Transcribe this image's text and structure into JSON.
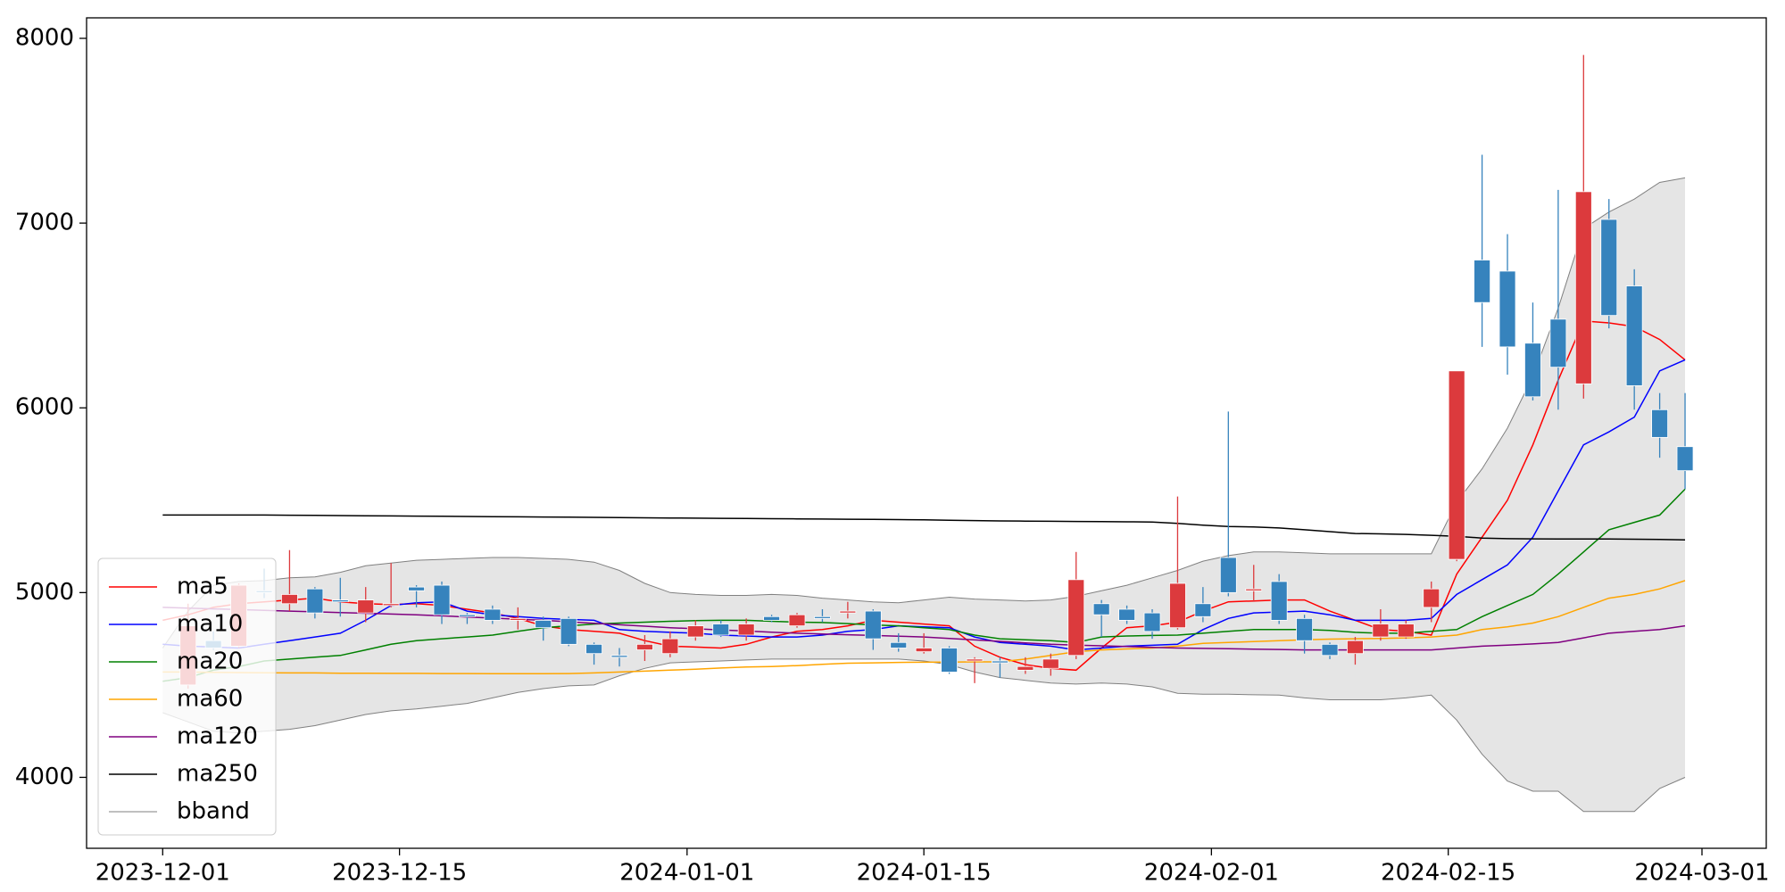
{
  "chart_data": {
    "type": "candlestick",
    "x": [
      0,
      1.5,
      3,
      4.5,
      6,
      7.5,
      9,
      10.5,
      12,
      13.5,
      15,
      16.5,
      18,
      19.5,
      21,
      22.5,
      24,
      25.5,
      27,
      28.5,
      30,
      31.5,
      33,
      34.5,
      36,
      37.5,
      39,
      40.5,
      42,
      43.5,
      45,
      46.5,
      48,
      49.5,
      51,
      52.5,
      54,
      55.5,
      57,
      58.5,
      60,
      61.5,
      63,
      64.5,
      66,
      67.5,
      69,
      70.5,
      72,
      73.5,
      75,
      76.5,
      78,
      79.5,
      81,
      82.5,
      84,
      85.5,
      87,
      88.5,
      90
    ],
    "xlim": [
      -4.5,
      94.8
    ],
    "xticks": [
      {
        "value": 0,
        "label": "2023-12-01"
      },
      {
        "value": 14,
        "label": "2023-12-15"
      },
      {
        "value": 31,
        "label": "2024-01-01"
      },
      {
        "value": 45,
        "label": "2024-01-15"
      },
      {
        "value": 62,
        "label": "2024-02-01"
      },
      {
        "value": 76,
        "label": "2024-02-15"
      },
      {
        "value": 91,
        "label": "2024-03-01"
      }
    ],
    "ylim": [
      3616,
      8111
    ],
    "yticks": [
      4000,
      5000,
      6000,
      7000,
      8000
    ],
    "legend": "lower left",
    "candles": {
      "up_color": "#dc3a3d",
      "down_color": "#3683bd",
      "x": [
        1.5,
        3,
        4.5,
        6,
        7.5,
        9,
        10.5,
        12,
        13.5,
        15,
        16.5,
        18,
        19.5,
        21,
        22.5,
        24,
        25.5,
        27,
        28.5,
        30,
        31.5,
        33,
        34.5,
        36,
        37.5,
        39,
        40.5,
        42,
        43.5,
        45,
        46.5,
        48,
        49.5,
        51,
        52.5,
        54,
        55.5,
        57,
        58.5,
        60,
        61.5,
        63,
        64.5,
        66,
        67.5,
        69,
        70.5,
        72,
        73.5,
        75,
        76.5,
        78,
        79.5,
        81,
        82.5,
        84,
        85.5,
        87,
        88.5,
        90
      ],
      "open": [
        4500,
        4740,
        4710,
        5010,
        4940,
        5020,
        4960,
        4890,
        4930,
        5030,
        5040,
        4880,
        4910,
        4850,
        4850,
        4860,
        4720,
        4660,
        4690,
        4670,
        4760,
        4830,
        4770,
        4870,
        4820,
        4870,
        4890,
        4900,
        4730,
        4680,
        4700,
        4630,
        4630,
        4580,
        4590,
        4660,
        4940,
        4910,
        4890,
        4810,
        4940,
        5190,
        5010,
        5060,
        4860,
        4720,
        4670,
        4760,
        4760,
        4920,
        5180,
        6800,
        6740,
        6350,
        6480,
        6130,
        7020,
        6660,
        5990,
        5790
      ],
      "high": [
        4940,
        4790,
        5050,
        5130,
        5230,
        5030,
        5080,
        5030,
        5160,
        5040,
        5060,
        4890,
        4930,
        4920,
        4870,
        4870,
        4730,
        4700,
        4770,
        4790,
        4850,
        4850,
        4860,
        4880,
        4890,
        4910,
        4950,
        4910,
        4780,
        4780,
        4710,
        4650,
        4650,
        4650,
        4670,
        5220,
        4960,
        4930,
        4910,
        5520,
        5030,
        5980,
        5150,
        5100,
        4880,
        4730,
        4760,
        4910,
        4850,
        5060,
        6200,
        7370,
        6940,
        6570,
        7180,
        7910,
        7130,
        6750,
        6080,
        6080
      ],
      "low": [
        4480,
        4690,
        4700,
        4970,
        4900,
        4860,
        4870,
        4840,
        4920,
        4920,
        4830,
        4830,
        4830,
        4800,
        4740,
        4710,
        4610,
        4600,
        4630,
        4650,
        4740,
        4760,
        4740,
        4840,
        4810,
        4840,
        4860,
        4690,
        4680,
        4670,
        4560,
        4510,
        4540,
        4560,
        4550,
        4640,
        4760,
        4830,
        4750,
        4800,
        4840,
        4980,
        4950,
        4830,
        4670,
        4640,
        4610,
        4740,
        4750,
        4840,
        5170,
        6330,
        6180,
        6040,
        5990,
        6050,
        6430,
        5990,
        5730,
        5560
      ],
      "close": [
        4820,
        4700,
        5040,
        5000,
        4990,
        4890,
        4950,
        4960,
        4940,
        5010,
        4880,
        4870,
        4850,
        4860,
        4810,
        4720,
        4670,
        4650,
        4720,
        4750,
        4820,
        4770,
        4830,
        4850,
        4880,
        4860,
        4900,
        4750,
        4700,
        4700,
        4570,
        4640,
        4620,
        4600,
        4640,
        5070,
        4880,
        4850,
        4790,
        5050,
        4870,
        5000,
        5020,
        4850,
        4740,
        4660,
        4740,
        4830,
        4830,
        5020,
        6200,
        6570,
        6330,
        6060,
        6220,
        7170,
        6500,
        6120,
        5840,
        5660
      ]
    },
    "series": [
      {
        "name": "ma5",
        "color": "#ff0000",
        "values": [
          4850,
          4880,
          4920,
          4940,
          4950,
          4960,
          4970,
          4950,
          4940,
          4935,
          4940,
          4930,
          4910,
          4890,
          4860,
          4820,
          4800,
          4790,
          4780,
          4740,
          4710,
          4705,
          4700,
          4720,
          4760,
          4790,
          4800,
          4820,
          4850,
          4840,
          4830,
          4820,
          4710,
          4650,
          4610,
          4590,
          4580,
          4700,
          4810,
          4820,
          4840,
          4900,
          4950,
          4955,
          4960,
          4960,
          4900,
          4850,
          4800,
          4790,
          4770,
          5100,
          5300,
          5500,
          5800,
          6150,
          6470,
          6460,
          6440,
          6370,
          6260
        ]
      },
      {
        "name": "ma10",
        "color": "#0000ff",
        "values": [
          4720,
          4710,
          4705,
          4700,
          4720,
          4740,
          4760,
          4780,
          4850,
          4930,
          4945,
          4950,
          4900,
          4880,
          4870,
          4860,
          4855,
          4850,
          4800,
          4790,
          4785,
          4780,
          4770,
          4765,
          4760,
          4760,
          4770,
          4790,
          4800,
          4820,
          4815,
          4810,
          4760,
          4730,
          4720,
          4710,
          4690,
          4700,
          4710,
          4715,
          4720,
          4800,
          4860,
          4890,
          4895,
          4900,
          4880,
          4850,
          4850,
          4850,
          4860,
          4990,
          5070,
          5150,
          5300,
          5550,
          5800,
          5870,
          5950,
          6200,
          6260
        ]
      },
      {
        "name": "ma20",
        "color": "#008000",
        "values": [
          4520,
          4540,
          4580,
          4600,
          4630,
          4640,
          4650,
          4660,
          4690,
          4720,
          4740,
          4750,
          4760,
          4770,
          4790,
          4810,
          4820,
          4830,
          4835,
          4840,
          4845,
          4848,
          4850,
          4850,
          4845,
          4840,
          4838,
          4832,
          4825,
          4820,
          4810,
          4800,
          4770,
          4750,
          4745,
          4740,
          4730,
          4760,
          4765,
          4768,
          4770,
          4780,
          4790,
          4800,
          4800,
          4800,
          4795,
          4785,
          4780,
          4780,
          4790,
          4800,
          4870,
          4930,
          4990,
          5100,
          5220,
          5340,
          5380,
          5420,
          5560
        ]
      },
      {
        "name": "ma60",
        "color": "#ffa500",
        "values": [
          4570,
          4570,
          4568,
          4567,
          4566,
          4565,
          4565,
          4564,
          4564,
          4563,
          4563,
          4562,
          4562,
          4561,
          4561,
          4561,
          4562,
          4565,
          4570,
          4575,
          4580,
          4585,
          4592,
          4597,
          4600,
          4605,
          4612,
          4618,
          4620,
          4622,
          4623,
          4624,
          4625,
          4625,
          4640,
          4660,
          4680,
          4690,
          4695,
          4700,
          4710,
          4725,
          4730,
          4735,
          4740,
          4745,
          4748,
          4750,
          4752,
          4755,
          4760,
          4770,
          4800,
          4815,
          4835,
          4870,
          4920,
          4970,
          4990,
          5020,
          5065
        ]
      },
      {
        "name": "ma120",
        "color": "#800080",
        "values": [
          4920,
          4916,
          4912,
          4908,
          4904,
          4900,
          4896,
          4892,
          4888,
          4884,
          4880,
          4874,
          4868,
          4862,
          4856,
          4850,
          4842,
          4834,
          4826,
          4818,
          4810,
          4804,
          4798,
          4792,
          4786,
          4780,
          4776,
          4772,
          4768,
          4764,
          4760,
          4752,
          4744,
          4736,
          4728,
          4720,
          4716,
          4712,
          4708,
          4704,
          4700,
          4698,
          4696,
          4694,
          4692,
          4690,
          4690,
          4690,
          4690,
          4690,
          4690,
          4700,
          4710,
          4716,
          4722,
          4730,
          4755,
          4780,
          4790,
          4800,
          4820
        ]
      },
      {
        "name": "ma250",
        "color": "#000000",
        "values": [
          5420,
          5420,
          5420,
          5420,
          5420,
          5419,
          5418,
          5417,
          5416,
          5415,
          5414,
          5413,
          5412,
          5411,
          5410,
          5409,
          5408,
          5407,
          5406,
          5405,
          5404,
          5403,
          5402,
          5401,
          5400,
          5399,
          5398,
          5397,
          5396,
          5395,
          5394,
          5392,
          5390,
          5388,
          5387,
          5386,
          5385,
          5384,
          5383,
          5382,
          5375,
          5365,
          5358,
          5355,
          5350,
          5340,
          5330,
          5320,
          5318,
          5315,
          5310,
          5305,
          5295,
          5292,
          5291,
          5290,
          5290,
          5290,
          5289,
          5288,
          5285
        ]
      }
    ],
    "bband": {
      "name": "bband",
      "color": "#808080",
      "fill": "#e5e5e5",
      "upper": [
        4700,
        4900,
        5040,
        5060,
        5065,
        5080,
        5085,
        5110,
        5145,
        5160,
        5175,
        5180,
        5185,
        5190,
        5190,
        5185,
        5180,
        5165,
        5120,
        5050,
        5000,
        4990,
        4985,
        4985,
        4990,
        4985,
        4970,
        4960,
        4950,
        4945,
        4960,
        4975,
        4965,
        4960,
        4955,
        4960,
        4980,
        5010,
        5040,
        5080,
        5120,
        5170,
        5200,
        5220,
        5220,
        5215,
        5210,
        5210,
        5210,
        5210,
        5210,
        5490,
        5670,
        5890,
        6170,
        6540,
        6970,
        7060,
        7130,
        7220,
        7245
      ],
      "lower": [
        4350,
        4300,
        4250,
        4240,
        4250,
        4260,
        4280,
        4310,
        4340,
        4360,
        4370,
        4385,
        4400,
        4430,
        4460,
        4480,
        4495,
        4500,
        4550,
        4590,
        4620,
        4625,
        4630,
        4635,
        4640,
        4640,
        4640,
        4640,
        4640,
        4640,
        4630,
        4610,
        4570,
        4540,
        4525,
        4510,
        4505,
        4510,
        4505,
        4490,
        4455,
        4450,
        4450,
        4447,
        4445,
        4430,
        4420,
        4420,
        4420,
        4430,
        4445,
        4310,
        4125,
        3980,
        3925,
        3925,
        3815,
        3815,
        3815,
        3940,
        4000
      ]
    }
  }
}
